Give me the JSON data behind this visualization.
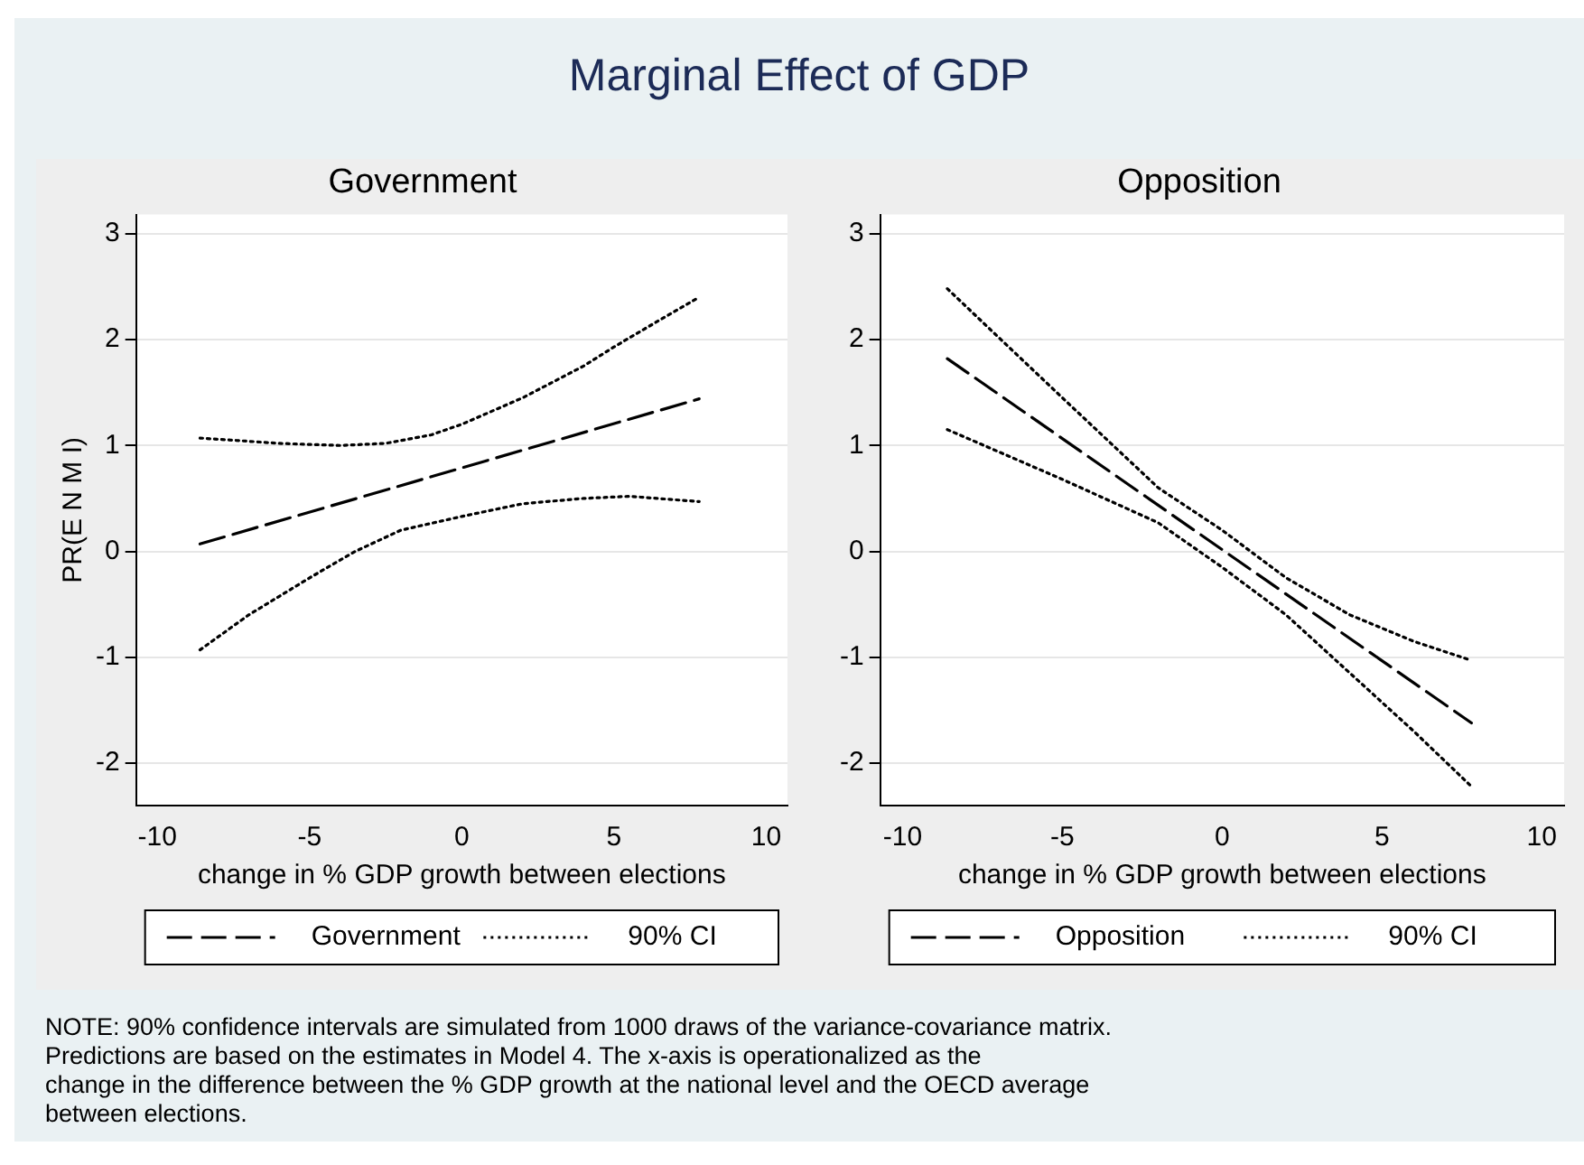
{
  "chart_data": [
    {
      "type": "line",
      "title": "Marginal Effect of GDP",
      "subtitle": "Government",
      "xlabel": "change in % GDP growth between elections",
      "ylabel": "PR(E N M I)",
      "xlim": [
        -10.7,
        10.7
      ],
      "ylim": [
        -2.4,
        3.18
      ],
      "xticks": [
        -10,
        -5,
        0,
        5,
        10
      ],
      "yticks": [
        -2,
        -1,
        0,
        1,
        2,
        3
      ],
      "grid": "y",
      "legend": "bottom",
      "marker": "none",
      "series": [
        {
          "name": "Government",
          "color": "#000000",
          "line_style": "dashed",
          "x": [
            -8.6,
            7.8
          ],
          "values": [
            0.07,
            1.44
          ]
        },
        {
          "name": "90% CI",
          "color": "#000000",
          "line_style": "dotted",
          "x": [
            -8.6,
            -6,
            -4,
            -2.5,
            -1,
            0,
            2,
            4,
            5,
            6,
            7.8
          ],
          "values": [
            1.07,
            1.02,
            1.0,
            1.02,
            1.1,
            1.2,
            1.45,
            1.75,
            1.93,
            2.1,
            2.4
          ]
        },
        {
          "color": "#000000",
          "line_style": "dotted",
          "x": [
            -8.6,
            -7,
            -5,
            -3.5,
            -2,
            0,
            2,
            4,
            5.5,
            7.8
          ],
          "values": [
            -0.93,
            -0.6,
            -0.25,
            0.0,
            0.2,
            0.33,
            0.45,
            0.5,
            0.52,
            0.47
          ]
        }
      ]
    },
    {
      "type": "line",
      "subtitle": "Opposition",
      "xlabel": "change in % GDP growth between elections",
      "xlim": [
        -10.7,
        10.7
      ],
      "ylim": [
        -2.4,
        3.18
      ],
      "xticks": [
        -10,
        -5,
        0,
        5,
        10
      ],
      "yticks": [
        -2,
        -1,
        0,
        1,
        2,
        3
      ],
      "grid": "y",
      "legend": "bottom",
      "marker": "none",
      "annotations": [
        "NOTE: 90% confidence intervals are simulated from 1000 draws of the variance-covariance matrix.",
        "Predictions are based on the estimates in Model 4. The x-axis is operationalized as the",
        "change in the difference between the % GDP growth at the national level and the OECD average",
        "between elections."
      ],
      "series": [
        {
          "name": "Opposition",
          "color": "#000000",
          "line_style": "dashed",
          "x": [
            -8.6,
            7.8
          ],
          "values": [
            1.82,
            -1.62
          ]
        },
        {
          "name": "90% CI",
          "color": "#000000",
          "line_style": "dotted",
          "x": [
            -8.6,
            -5,
            -2,
            0,
            2,
            4,
            6,
            7.8
          ],
          "values": [
            2.48,
            1.45,
            0.6,
            0.2,
            -0.25,
            -0.6,
            -0.85,
            -1.03
          ]
        },
        {
          "color": "#000000",
          "line_style": "dotted",
          "x": [
            -8.6,
            -5,
            -2,
            0,
            2,
            4,
            6,
            7.8
          ],
          "values": [
            1.15,
            0.68,
            0.27,
            -0.15,
            -0.6,
            -1.15,
            -1.7,
            -2.22
          ]
        }
      ]
    }
  ]
}
